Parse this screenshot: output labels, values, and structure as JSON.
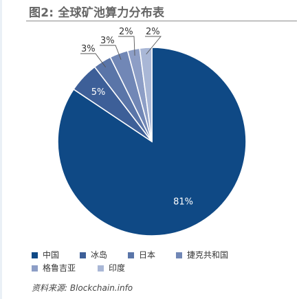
{
  "title": "图2: 全球矿池算力分布表",
  "source": "资料来源: Blockchain.info",
  "chart_data": {
    "type": "pie",
    "title": "图2: 全球矿池算力分布表",
    "start_angle_deg": 0,
    "direction": "clockwise",
    "slices": [
      {
        "label": "中国",
        "value": 81,
        "value_label": "81%",
        "color": "#0f4985"
      },
      {
        "label": "冰岛",
        "value": 5,
        "value_label": "5%",
        "color": "#3d5f98"
      },
      {
        "label": "日本",
        "value": 3,
        "value_label": "3%",
        "color": "#5a75a8"
      },
      {
        "label": "捷克共和国",
        "value": 3,
        "value_label": "3%",
        "color": "#7187b6"
      },
      {
        "label": "格鲁吉亚",
        "value": 2,
        "value_label": "2%",
        "color": "#8d9ec6"
      },
      {
        "label": "印度",
        "value": 2,
        "value_label": "2%",
        "color": "#a9b7d6"
      }
    ],
    "legend_position": "bottom"
  }
}
